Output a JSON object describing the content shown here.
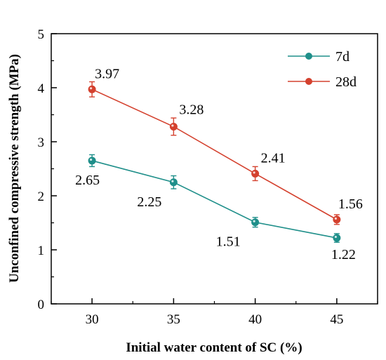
{
  "chart_data": {
    "type": "line",
    "title": "",
    "xlabel": "Initial water content of SC (%)",
    "ylabel": "Unconfined compressive strength (MPa)",
    "x": [
      30,
      35,
      40,
      45
    ],
    "x_ticks": [
      "30",
      "35",
      "40",
      "45"
    ],
    "xlim": [
      27.5,
      47.5
    ],
    "y_ticks": [
      "0",
      "1",
      "2",
      "3",
      "4",
      "5"
    ],
    "ylim": [
      0,
      5
    ],
    "grid": false,
    "legend_position": "top-right",
    "series": [
      {
        "name": "7d",
        "color": "#1f8f8a",
        "values": [
          2.65,
          2.25,
          1.51,
          1.22
        ],
        "errors": [
          0.11,
          0.12,
          0.09,
          0.08
        ],
        "labels": [
          "2.65",
          "2.25",
          "1.51",
          "1.22"
        ]
      },
      {
        "name": "28d",
        "color": "#d4412e",
        "values": [
          3.97,
          3.28,
          2.41,
          1.56
        ],
        "errors": [
          0.14,
          0.16,
          0.13,
          0.09
        ],
        "labels": [
          "3.97",
          "3.28",
          "2.41",
          "1.56"
        ]
      }
    ]
  }
}
